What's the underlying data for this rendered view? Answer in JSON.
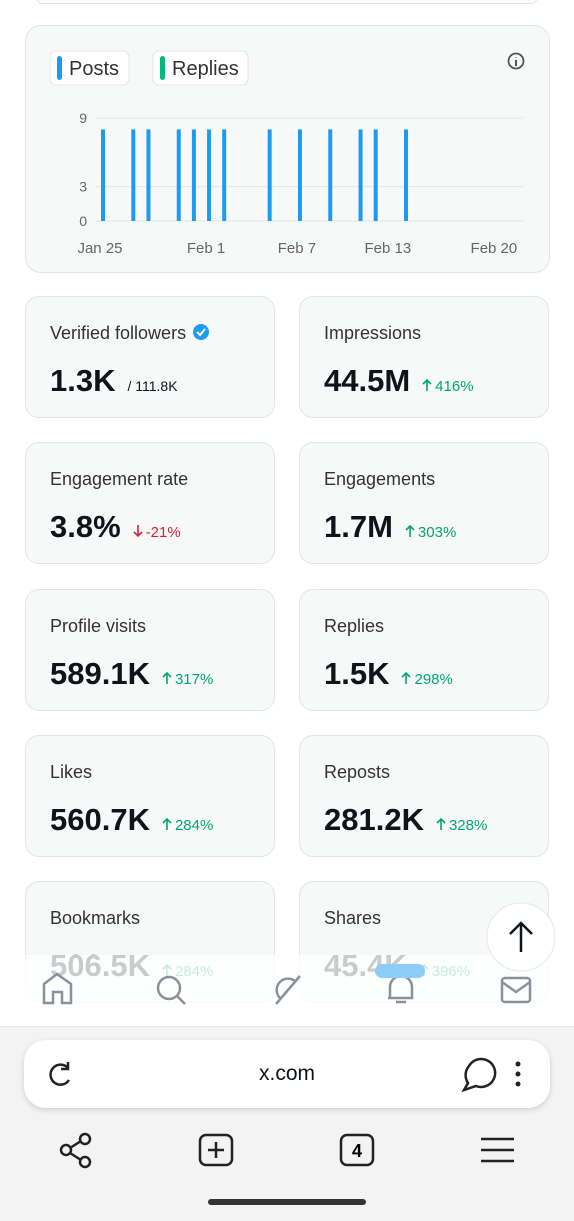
{
  "chart_data": {
    "type": "bar",
    "categories": [
      "Jan 25",
      null,
      null,
      null,
      null,
      null,
      null,
      "Feb 1",
      null,
      null,
      null,
      null,
      null,
      "Feb 7",
      null,
      null,
      null,
      null,
      null,
      "Feb 13",
      null,
      null,
      null,
      null,
      null,
      null,
      "Feb 20"
    ],
    "series": [
      {
        "name": "Posts",
        "color": "#1d9bf0",
        "values": [
          8,
          0,
          8,
          8,
          0,
          8,
          8,
          8,
          8,
          0,
          0,
          8,
          0,
          8,
          0,
          8,
          0,
          8,
          8,
          0,
          8,
          0,
          0,
          0,
          0,
          0,
          0
        ]
      },
      {
        "name": "Replies",
        "color": "#00ba7c",
        "values": [
          0,
          0,
          0,
          0,
          0,
          0,
          0,
          0,
          0,
          0,
          0,
          0,
          0,
          0,
          0,
          0,
          0,
          0,
          0,
          0,
          0,
          0,
          0,
          0,
          0,
          0,
          0
        ]
      }
    ],
    "ylim": [
      0,
      9
    ],
    "yticks": [
      0,
      3,
      9
    ],
    "grid": true
  },
  "cards": [
    {
      "label": "Verified followers",
      "value": "1.3K",
      "total": "/ 111.8K"
    },
    {
      "label": "Impressions",
      "value": "44.5M",
      "change": "416%",
      "direction": "up"
    },
    {
      "label": "Engagement rate",
      "value": "3.8%",
      "change": "-21%",
      "direction": "down"
    },
    {
      "label": "Engagements",
      "value": "1.7M",
      "change": "303%",
      "direction": "up"
    },
    {
      "label": "Profile visits",
      "value": "589.1K",
      "change": "317%",
      "direction": "up"
    },
    {
      "label": "Replies",
      "value": "1.5K",
      "change": "298%",
      "direction": "up"
    },
    {
      "label": "Likes",
      "value": "560.7K",
      "change": "284%",
      "direction": "up"
    },
    {
      "label": "Reposts",
      "value": "281.2K",
      "change": "328%",
      "direction": "up"
    },
    {
      "label": "Bookmarks",
      "value": "506.5K",
      "change": "284%",
      "direction": "up"
    },
    {
      "label": "Shares",
      "value": "45.4K",
      "change": "396%",
      "direction": "up"
    }
  ],
  "browser": {
    "url": "x.com",
    "tabs": "4"
  }
}
